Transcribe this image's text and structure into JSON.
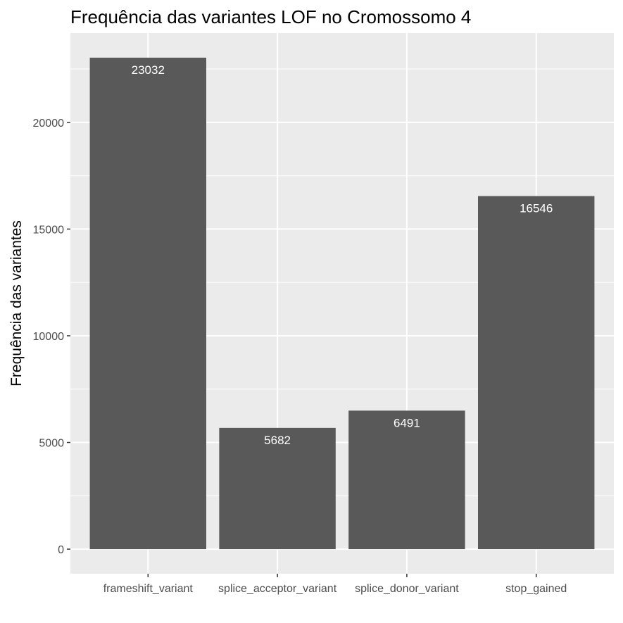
{
  "chart_data": {
    "type": "bar",
    "title": "Frequência das variantes LOF no Cromossomo 4",
    "xlabel": "",
    "ylabel": "Frequência das variantes",
    "categories": [
      "frameshift_variant",
      "splice_acceptor_variant",
      "splice_donor_variant",
      "stop_gained"
    ],
    "values": [
      23032,
      5682,
      6491,
      16546
    ],
    "data_labels": [
      "23032",
      "5682",
      "6491",
      "16546"
    ],
    "ylim": [
      -1151.6,
      24183.6
    ],
    "yticks": [
      0,
      5000,
      10000,
      15000,
      20000
    ],
    "ytick_labels": [
      "0",
      "5000",
      "10000",
      "15000",
      "20000"
    ],
    "grid": true,
    "legend": "none",
    "colors": {
      "bar": "#595959",
      "panel": "#ebebeb",
      "grid": "#ffffff",
      "data_label": "#ffffff",
      "tick_label": "#4d4d4d",
      "tick": "#333333",
      "text": "#000000"
    }
  }
}
